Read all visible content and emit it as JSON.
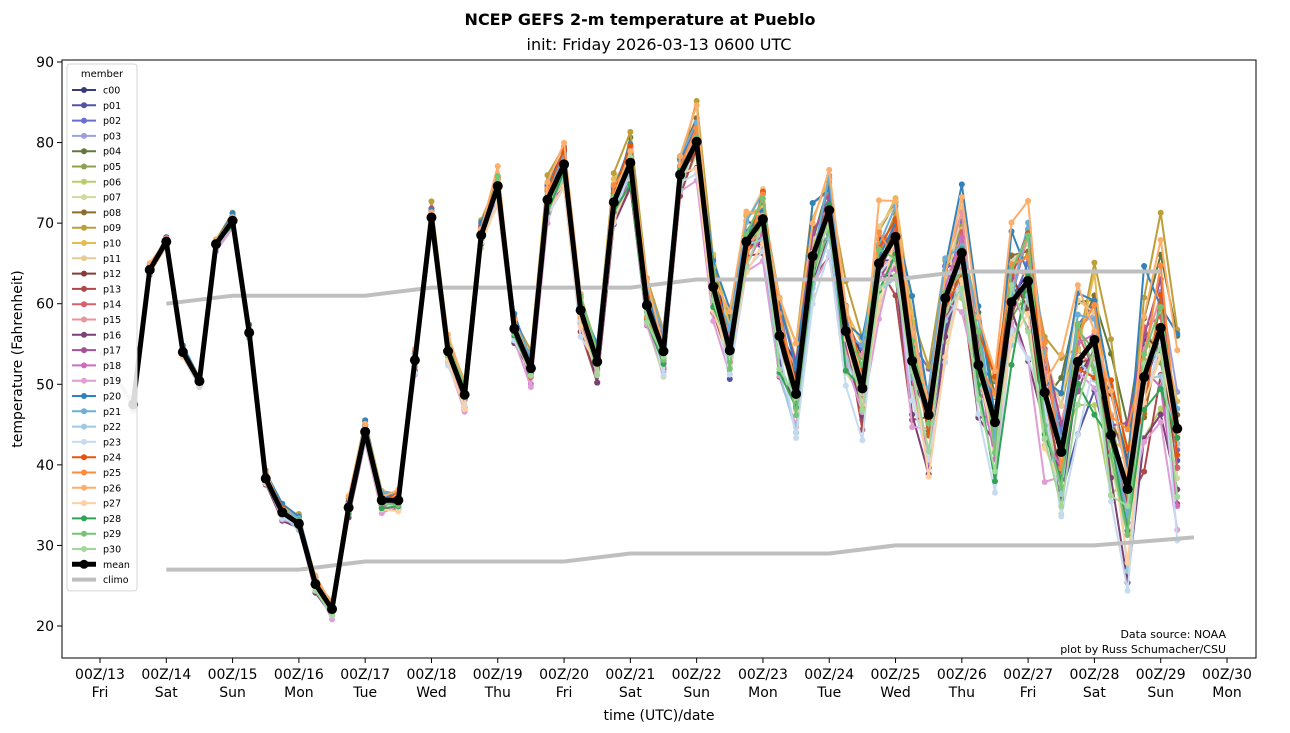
{
  "chart_data": {
    "type": "line",
    "title": "NCEP GEFS 2-m temperature at Pueblo",
    "subtitle": "init: Friday 2026-03-13 0600 UTC",
    "xlabel": "time (UTC)/date",
    "ylabel": "temperature (Fahrenheit)",
    "ylim": [
      16,
      91
    ],
    "yticks": [
      20,
      30,
      40,
      50,
      60,
      70,
      80,
      90
    ],
    "x_unit": "hours since 00Z/13",
    "xlim": [
      -42,
      414
    ],
    "xticks": [
      {
        "hour": 0,
        "line1": "00Z/13",
        "line2": "Fri"
      },
      {
        "hour": 24,
        "line1": "00Z/14",
        "line2": "Sat"
      },
      {
        "hour": 48,
        "line1": "00Z/15",
        "line2": "Sun"
      },
      {
        "hour": 72,
        "line1": "00Z/16",
        "line2": "Mon"
      },
      {
        "hour": 96,
        "line1": "00Z/17",
        "line2": "Tue"
      },
      {
        "hour": 120,
        "line1": "00Z/18",
        "line2": "Wed"
      },
      {
        "hour": 144,
        "line1": "00Z/19",
        "line2": "Thu"
      },
      {
        "hour": 168,
        "line1": "00Z/20",
        "line2": "Fri"
      },
      {
        "hour": 192,
        "line1": "00Z/21",
        "line2": "Sat"
      },
      {
        "hour": 216,
        "line1": "00Z/22",
        "line2": "Sun"
      },
      {
        "hour": 240,
        "line1": "00Z/23",
        "line2": "Mon"
      },
      {
        "hour": 264,
        "line1": "00Z/24",
        "line2": "Tue"
      },
      {
        "hour": 288,
        "line1": "00Z/25",
        "line2": "Wed"
      },
      {
        "hour": 312,
        "line1": "00Z/26",
        "line2": "Thu"
      },
      {
        "hour": 336,
        "line1": "00Z/27",
        "line2": "Fri"
      },
      {
        "hour": 360,
        "line1": "00Z/28",
        "line2": "Sat"
      },
      {
        "hour": 384,
        "line1": "00Z/29",
        "line2": "Sun"
      },
      {
        "hour": 408,
        "line1": "00Z/30",
        "line2": "Mon"
      }
    ],
    "grid": false,
    "legend": {
      "title": "member",
      "placement": "upper-left"
    },
    "time_start_hour": 12,
    "time_step_hours": 6,
    "mean": {
      "name": "mean",
      "color": "#000000",
      "values": [
        47.5,
        64.2,
        67.7,
        54.0,
        50.4,
        67.4,
        70.3,
        56.4,
        38.3,
        34.1,
        32.7,
        25.2,
        22.1,
        34.7,
        44.1,
        35.6,
        35.6,
        53.0,
        70.7,
        54.1,
        48.7,
        68.5,
        74.6,
        56.9,
        52.0,
        72.9,
        77.3,
        59.2,
        52.8,
        72.6,
        77.5,
        59.8,
        54.1,
        76.0,
        80.1,
        62.1,
        54.2,
        67.7,
        70.5,
        56.0,
        48.8,
        65.9,
        71.6,
        56.6,
        49.5,
        65.0,
        68.3,
        52.9,
        46.2,
        60.7,
        66.3,
        52.4,
        45.3,
        60.2,
        62.8,
        49.0,
        41.6,
        52.8,
        55.5,
        43.7,
        37.0,
        50.9,
        57.0,
        44.5
      ]
    },
    "climo": {
      "name": "climo",
      "color": "#bfbfbf",
      "max": [
        [
          0,
          54.0
        ],
        [
          12,
          47.5
        ]
      ],
      "min": [],
      "high": [
        [
          24,
          60
        ],
        [
          48,
          61
        ],
        [
          96,
          61
        ],
        [
          120,
          62
        ],
        [
          192,
          62
        ],
        [
          216,
          63
        ],
        [
          288,
          63
        ],
        [
          312,
          64
        ],
        [
          384,
          64
        ]
      ],
      "low": [
        [
          24,
          27
        ],
        [
          72,
          27
        ],
        [
          96,
          28
        ],
        [
          168,
          28
        ],
        [
          192,
          29
        ],
        [
          264,
          29
        ],
        [
          288,
          30
        ],
        [
          360,
          30
        ],
        [
          396,
          31
        ]
      ]
    },
    "members": [
      {
        "name": "c00",
        "color": "#393b79"
      },
      {
        "name": "p01",
        "color": "#5254a3"
      },
      {
        "name": "p02",
        "color": "#6b6ecf"
      },
      {
        "name": "p03",
        "color": "#9c9ede"
      },
      {
        "name": "p04",
        "color": "#637939"
      },
      {
        "name": "p05",
        "color": "#8ca252"
      },
      {
        "name": "p06",
        "color": "#b5cf6b"
      },
      {
        "name": "p07",
        "color": "#cedb9c"
      },
      {
        "name": "p08",
        "color": "#8c6d31"
      },
      {
        "name": "p09",
        "color": "#bd9e39"
      },
      {
        "name": "p10",
        "color": "#e7ba52"
      },
      {
        "name": "p11",
        "color": "#e7cb94"
      },
      {
        "name": "p12",
        "color": "#843c39"
      },
      {
        "name": "p13",
        "color": "#ad494a"
      },
      {
        "name": "p14",
        "color": "#d6616b"
      },
      {
        "name": "p15",
        "color": "#e7969c"
      },
      {
        "name": "p16",
        "color": "#7b4173"
      },
      {
        "name": "p17",
        "color": "#a55194"
      },
      {
        "name": "p18",
        "color": "#ce6dbd"
      },
      {
        "name": "p19",
        "color": "#de9ed6"
      },
      {
        "name": "p20",
        "color": "#3182bd"
      },
      {
        "name": "p21",
        "color": "#6baed6"
      },
      {
        "name": "p22",
        "color": "#9ecae1"
      },
      {
        "name": "p23",
        "color": "#c6dbef"
      },
      {
        "name": "p24",
        "color": "#e6550d"
      },
      {
        "name": "p25",
        "color": "#fd8d3c"
      },
      {
        "name": "p26",
        "color": "#fdae6b"
      },
      {
        "name": "p27",
        "color": "#fdd0a2"
      },
      {
        "name": "p28",
        "color": "#31a354"
      },
      {
        "name": "p29",
        "color": "#74c476"
      },
      {
        "name": "p30",
        "color": "#a1d99b"
      }
    ],
    "member_spread_note": "individual member values cluster around the mean; spread grows with lead time",
    "annotations": [
      "Data source: NOAA",
      "plot by Russ Schumacher/CSU"
    ]
  }
}
